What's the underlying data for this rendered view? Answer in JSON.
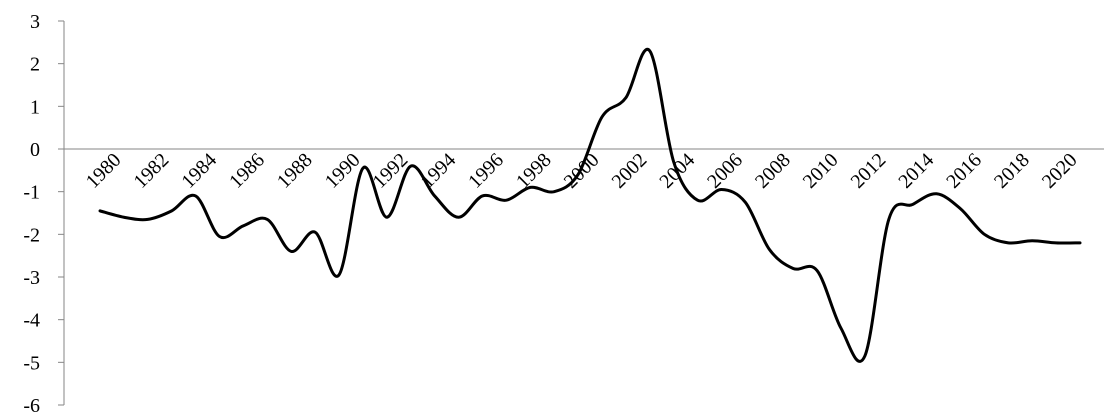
{
  "chart_data": {
    "type": "line",
    "title": "",
    "xlabel": "",
    "ylabel": "",
    "ylim": [
      -6,
      3
    ],
    "yticks": [
      "3",
      "2",
      "1",
      "0",
      "-1",
      "-2",
      "-3",
      "-4",
      "-5",
      "-6"
    ],
    "xtick_labels": [
      "1980",
      "1982",
      "1984",
      "1986",
      "1988",
      "1990",
      "1992",
      "1994",
      "1996",
      "1998",
      "2000",
      "2002",
      "2004",
      "2006",
      "2008",
      "2010",
      "2012",
      "2014",
      "2016",
      "2018",
      "2020"
    ],
    "line_color": "#000000",
    "grid": false,
    "series": [
      {
        "x": [
          1980,
          1981,
          1982,
          1983,
          1984,
          1985,
          1986,
          1987,
          1988,
          1989,
          1990,
          1991,
          1992,
          1993,
          1994,
          1995,
          1996,
          1997,
          1998,
          1999,
          2000,
          2001,
          2002,
          2003,
          2004,
          2005,
          2006,
          2007,
          2008,
          2009,
          2010,
          2011,
          2012,
          2013,
          2014,
          2015,
          2016,
          2017,
          2018,
          2019,
          2020,
          2021
        ],
        "values": [
          -1.45,
          -1.6,
          -1.65,
          -1.45,
          -1.1,
          -2.05,
          -1.8,
          -1.65,
          -2.4,
          -1.95,
          -2.95,
          -0.45,
          -1.6,
          -0.4,
          -1.1,
          -1.6,
          -1.1,
          -1.2,
          -0.9,
          -1.0,
          -0.6,
          0.75,
          1.2,
          2.3,
          -0.3,
          -1.2,
          -0.95,
          -1.25,
          -2.35,
          -2.8,
          -2.85,
          -4.2,
          -4.85,
          -1.65,
          -1.3,
          -1.05,
          -1.4,
          -2.0,
          -2.2,
          -2.15,
          -2.2,
          -2.2
        ]
      }
    ]
  }
}
